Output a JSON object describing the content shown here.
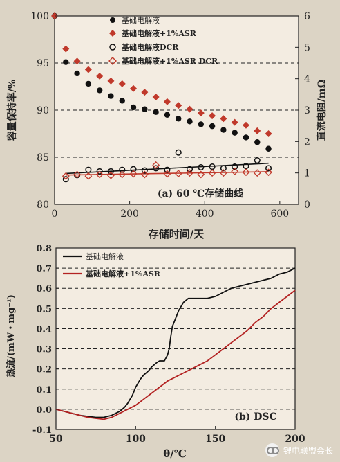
{
  "watermark_text": "锂电联盟会长",
  "chart_data": [
    {
      "type": "scatter",
      "annotation": "(a) 60 ℃存储曲线",
      "xlabel": "存储时间/天",
      "ylabel": "容量保持率/%",
      "ylabel_right": "直流电阻/mΩ",
      "xlim": [
        0,
        650
      ],
      "ylim": [
        80,
        100
      ],
      "ylim_right": [
        0,
        6
      ],
      "xticks": [
        "0",
        "200",
        "400",
        "600"
      ],
      "yticks": [
        "80",
        "85",
        "90",
        "95",
        "100"
      ],
      "yticks_right": [
        "0",
        "1",
        "2",
        "3",
        "4",
        "5",
        "6"
      ],
      "hgrid_dashed_left": [
        85,
        90,
        95
      ],
      "legend_position": "top-left",
      "series": [
        {
          "name": "基础电解液",
          "axis": "left",
          "marker": "filled-circle",
          "color": "#111111",
          "points": [
            [
              0,
              100
            ],
            [
              30,
              95.1
            ],
            [
              60,
              93.9
            ],
            [
              90,
              92.8
            ],
            [
              120,
              92.1
            ],
            [
              150,
              91.5
            ],
            [
              180,
              91
            ],
            [
              210,
              90.3
            ],
            [
              240,
              90.1
            ],
            [
              270,
              89.8
            ],
            [
              300,
              89.5
            ],
            [
              330,
              89.1
            ],
            [
              360,
              88.8
            ],
            [
              390,
              88.5
            ],
            [
              420,
              88.3
            ],
            [
              450,
              87.9
            ],
            [
              480,
              87.6
            ],
            [
              510,
              87.1
            ],
            [
              540,
              86.6
            ],
            [
              570,
              85.9
            ]
          ]
        },
        {
          "name": "基础电解液+1%ASR",
          "axis": "left",
          "marker": "filled-diamond",
          "color": "#c0392b",
          "points": [
            [
              0,
              100
            ],
            [
              30,
              96.5
            ],
            [
              60,
              95.2
            ],
            [
              90,
              94.3
            ],
            [
              120,
              93.6
            ],
            [
              150,
              93.1
            ],
            [
              180,
              92.8
            ],
            [
              210,
              92.3
            ],
            [
              240,
              91.9
            ],
            [
              270,
              91.4
            ],
            [
              300,
              90.9
            ],
            [
              330,
              90.5
            ],
            [
              360,
              90.1
            ],
            [
              390,
              89.7
            ],
            [
              420,
              89.4
            ],
            [
              450,
              89.1
            ],
            [
              480,
              88.7
            ],
            [
              510,
              88.4
            ],
            [
              540,
              87.8
            ],
            [
              570,
              87.5
            ]
          ]
        },
        {
          "name": "基础电解液DCR",
          "axis": "right",
          "marker": "open-circle",
          "color": "#111111",
          "points": [
            [
              30,
              0.8
            ],
            [
              60,
              0.93
            ],
            [
              90,
              1.1
            ],
            [
              120,
              1.05
            ],
            [
              150,
              1.05
            ],
            [
              180,
              1.1
            ],
            [
              210,
              1.12
            ],
            [
              240,
              1.08
            ],
            [
              270,
              1.15
            ],
            [
              300,
              1.1
            ],
            [
              330,
              1.65
            ],
            [
              360,
              1.12
            ],
            [
              390,
              1.18
            ],
            [
              420,
              1.2
            ],
            [
              450,
              1.15
            ],
            [
              480,
              1.2
            ],
            [
              510,
              1.22
            ],
            [
              540,
              1.4
            ],
            [
              570,
              1.15
            ]
          ]
        },
        {
          "name": "基础电解液+1%ASR DCR",
          "axis": "right",
          "marker": "open-diamond",
          "color": "#c0392b",
          "points": [
            [
              30,
              0.9
            ],
            [
              60,
              0.95
            ],
            [
              90,
              0.9
            ],
            [
              120,
              0.95
            ],
            [
              150,
              0.92
            ],
            [
              180,
              0.95
            ],
            [
              210,
              0.97
            ],
            [
              240,
              0.95
            ],
            [
              270,
              1.25
            ],
            [
              300,
              0.97
            ],
            [
              330,
              0.98
            ],
            [
              360,
              1.0
            ],
            [
              390,
              0.95
            ],
            [
              420,
              1.0
            ],
            [
              450,
              1.0
            ],
            [
              480,
              1.05
            ],
            [
              510,
              1.02
            ],
            [
              540,
              1.0
            ],
            [
              570,
              1.02
            ]
          ]
        }
      ]
    },
    {
      "type": "line",
      "annotation": "(b) DSC",
      "xlabel": "θ/℃",
      "ylabel": "热流/(mW・mg⁻¹)",
      "xlim": [
        50,
        200
      ],
      "ylim": [
        -0.1,
        0.8
      ],
      "xticks": [
        "50",
        "100",
        "150",
        "200"
      ],
      "yticks": [
        "-0.1",
        "0.0",
        "0.1",
        "0.2",
        "0.3",
        "0.4",
        "0.5",
        "0.6",
        "0.7",
        "0.8"
      ],
      "hgrid_dashed": [
        0.0,
        0.1,
        0.2,
        0.3,
        0.4,
        0.5,
        0.6,
        0.7
      ],
      "legend_position": "top-left",
      "series": [
        {
          "name": "基础电解液",
          "color": "#111111",
          "x": [
            50,
            55,
            60,
            65,
            70,
            75,
            80,
            85,
            90,
            93,
            95,
            98,
            100,
            103,
            105,
            108,
            110,
            113,
            115,
            118,
            120,
            121,
            122,
            123,
            125,
            127,
            130,
            133,
            136,
            140,
            145,
            150,
            155,
            160,
            165,
            170,
            175,
            180,
            185,
            190,
            195,
            200
          ],
          "y": [
            0.0,
            -0.01,
            -0.02,
            -0.03,
            -0.035,
            -0.04,
            -0.04,
            -0.03,
            -0.01,
            0.01,
            0.03,
            0.07,
            0.11,
            0.15,
            0.17,
            0.19,
            0.21,
            0.23,
            0.24,
            0.24,
            0.27,
            0.3,
            0.36,
            0.41,
            0.45,
            0.49,
            0.53,
            0.55,
            0.55,
            0.55,
            0.55,
            0.56,
            0.58,
            0.6,
            0.61,
            0.62,
            0.63,
            0.64,
            0.65,
            0.67,
            0.68,
            0.7
          ]
        },
        {
          "name": "基础电解液+1%ASR",
          "color": "#b32222",
          "x": [
            50,
            55,
            60,
            65,
            70,
            75,
            80,
            85,
            90,
            95,
            100,
            105,
            110,
            115,
            120,
            125,
            130,
            135,
            140,
            145,
            150,
            155,
            160,
            165,
            170,
            175,
            180,
            185,
            190,
            195,
            200
          ],
          "y": [
            0.0,
            -0.01,
            -0.02,
            -0.03,
            -0.04,
            -0.045,
            -0.05,
            -0.04,
            -0.02,
            0.0,
            0.02,
            0.05,
            0.08,
            0.11,
            0.14,
            0.16,
            0.18,
            0.2,
            0.22,
            0.24,
            0.27,
            0.3,
            0.33,
            0.36,
            0.39,
            0.43,
            0.46,
            0.5,
            0.53,
            0.56,
            0.59
          ]
        }
      ]
    }
  ]
}
